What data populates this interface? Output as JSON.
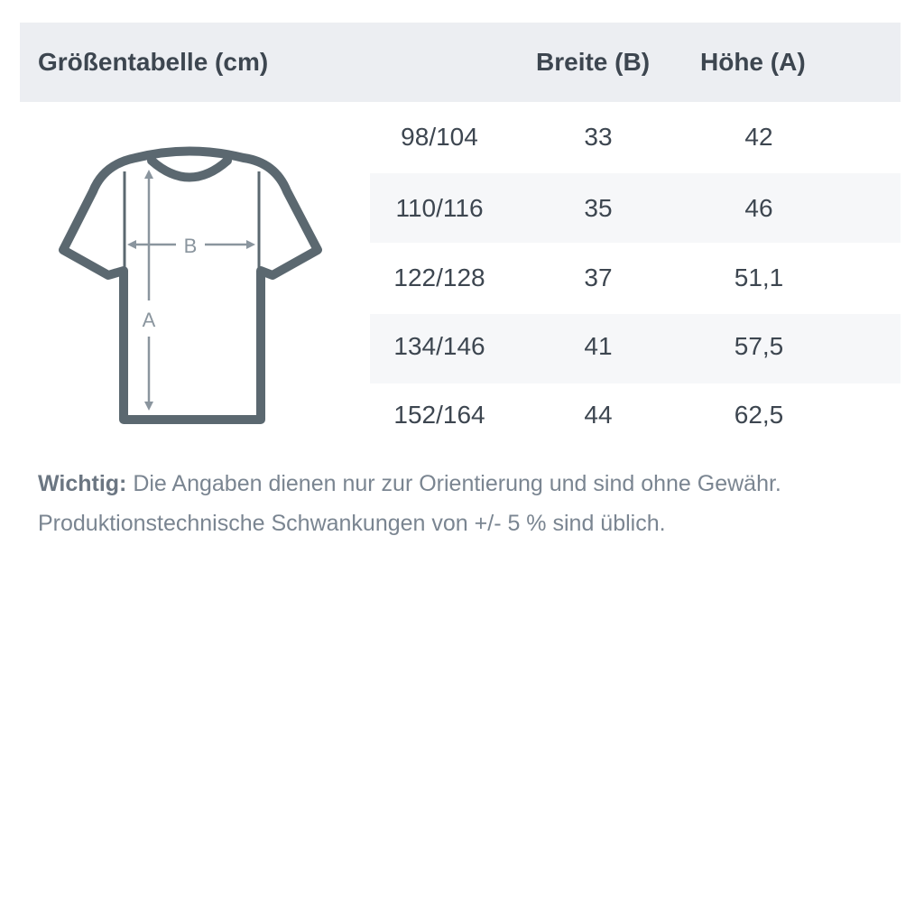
{
  "header": {
    "title": "Größentabelle (cm)",
    "col_width": "Breite (B)",
    "col_height": "Höhe (A)"
  },
  "rows": [
    {
      "size": "98/104",
      "width": "33",
      "height": "42"
    },
    {
      "size": "110/116",
      "width": "35",
      "height": "46"
    },
    {
      "size": "122/128",
      "width": "37",
      "height": "51,1"
    },
    {
      "size": "134/146",
      "width": "41",
      "height": "57,5"
    },
    {
      "size": "152/164",
      "width": "44",
      "height": "62,5"
    }
  ],
  "diagram": {
    "label_b": "B",
    "label_a": "A"
  },
  "note": {
    "label": "Wichtig:",
    "line1": " Die Angaben dienen nur zur Orientierung und sind ohne Gewähr.",
    "line2": "Produktionstechnische Schwankungen von +/- 5 % sind üblich."
  },
  "colors": {
    "header_bg": "#eceef2",
    "shirt": "#5b6870",
    "arrows": "#8a959e",
    "note": "#7a8591"
  }
}
